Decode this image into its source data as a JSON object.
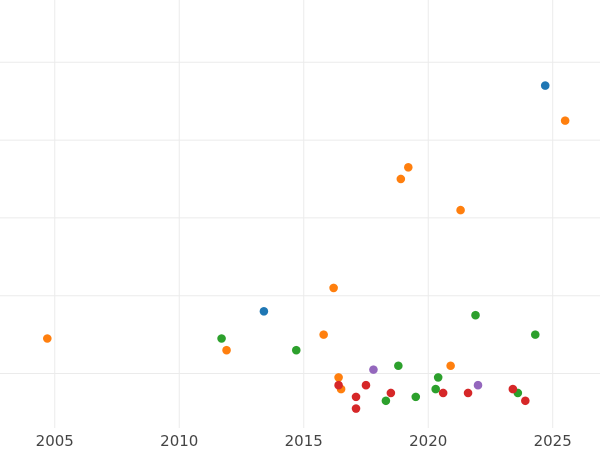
{
  "chart_data": {
    "type": "scatter",
    "title": "",
    "xlabel": "",
    "ylabel": "",
    "xlim": [
      2002.8,
      2026.9
    ],
    "ylim": [
      -0.2,
      5.3
    ],
    "x_ticks": [
      2005,
      2010,
      2015,
      2020,
      2025
    ],
    "x_tick_labels": [
      "2005",
      "2010",
      "2015",
      "2020",
      "2025"
    ],
    "y_grid": [
      0.5,
      1.5,
      2.5,
      3.5,
      4.5
    ],
    "grid": true,
    "legend": "none",
    "series": [
      {
        "color": "#1f77b4",
        "points": [
          {
            "x": 2013.4,
            "y": 1.3
          },
          {
            "x": 2024.7,
            "y": 4.2
          }
        ]
      },
      {
        "color": "#ff7f0e",
        "points": [
          {
            "x": 2004.7,
            "y": 0.95
          },
          {
            "x": 2011.9,
            "y": 0.8
          },
          {
            "x": 2015.8,
            "y": 1.0
          },
          {
            "x": 2016.2,
            "y": 1.6
          },
          {
            "x": 2016.4,
            "y": 0.45
          },
          {
            "x": 2016.5,
            "y": 0.3
          },
          {
            "x": 2018.9,
            "y": 3.0
          },
          {
            "x": 2019.2,
            "y": 3.15
          },
          {
            "x": 2020.9,
            "y": 0.6
          },
          {
            "x": 2021.3,
            "y": 2.6
          },
          {
            "x": 2025.5,
            "y": 3.75
          }
        ]
      },
      {
        "color": "#2ca02c",
        "points": [
          {
            "x": 2011.7,
            "y": 0.95
          },
          {
            "x": 2014.7,
            "y": 0.8
          },
          {
            "x": 2018.3,
            "y": 0.15
          },
          {
            "x": 2018.8,
            "y": 0.6
          },
          {
            "x": 2019.5,
            "y": 0.2
          },
          {
            "x": 2020.3,
            "y": 0.3
          },
          {
            "x": 2020.4,
            "y": 0.45
          },
          {
            "x": 2021.9,
            "y": 1.25
          },
          {
            "x": 2023.6,
            "y": 0.25
          },
          {
            "x": 2024.3,
            "y": 1.0
          }
        ]
      },
      {
        "color": "#d62728",
        "points": [
          {
            "x": 2016.4,
            "y": 0.35
          },
          {
            "x": 2017.1,
            "y": 0.2
          },
          {
            "x": 2017.1,
            "y": 0.05
          },
          {
            "x": 2017.5,
            "y": 0.35
          },
          {
            "x": 2018.5,
            "y": 0.25
          },
          {
            "x": 2020.6,
            "y": 0.25
          },
          {
            "x": 2021.6,
            "y": 0.25
          },
          {
            "x": 2023.4,
            "y": 0.3
          },
          {
            "x": 2023.9,
            "y": 0.15
          }
        ]
      },
      {
        "color": "#9467bd",
        "points": [
          {
            "x": 2017.8,
            "y": 0.55
          },
          {
            "x": 2022.0,
            "y": 0.35
          }
        ]
      }
    ]
  }
}
